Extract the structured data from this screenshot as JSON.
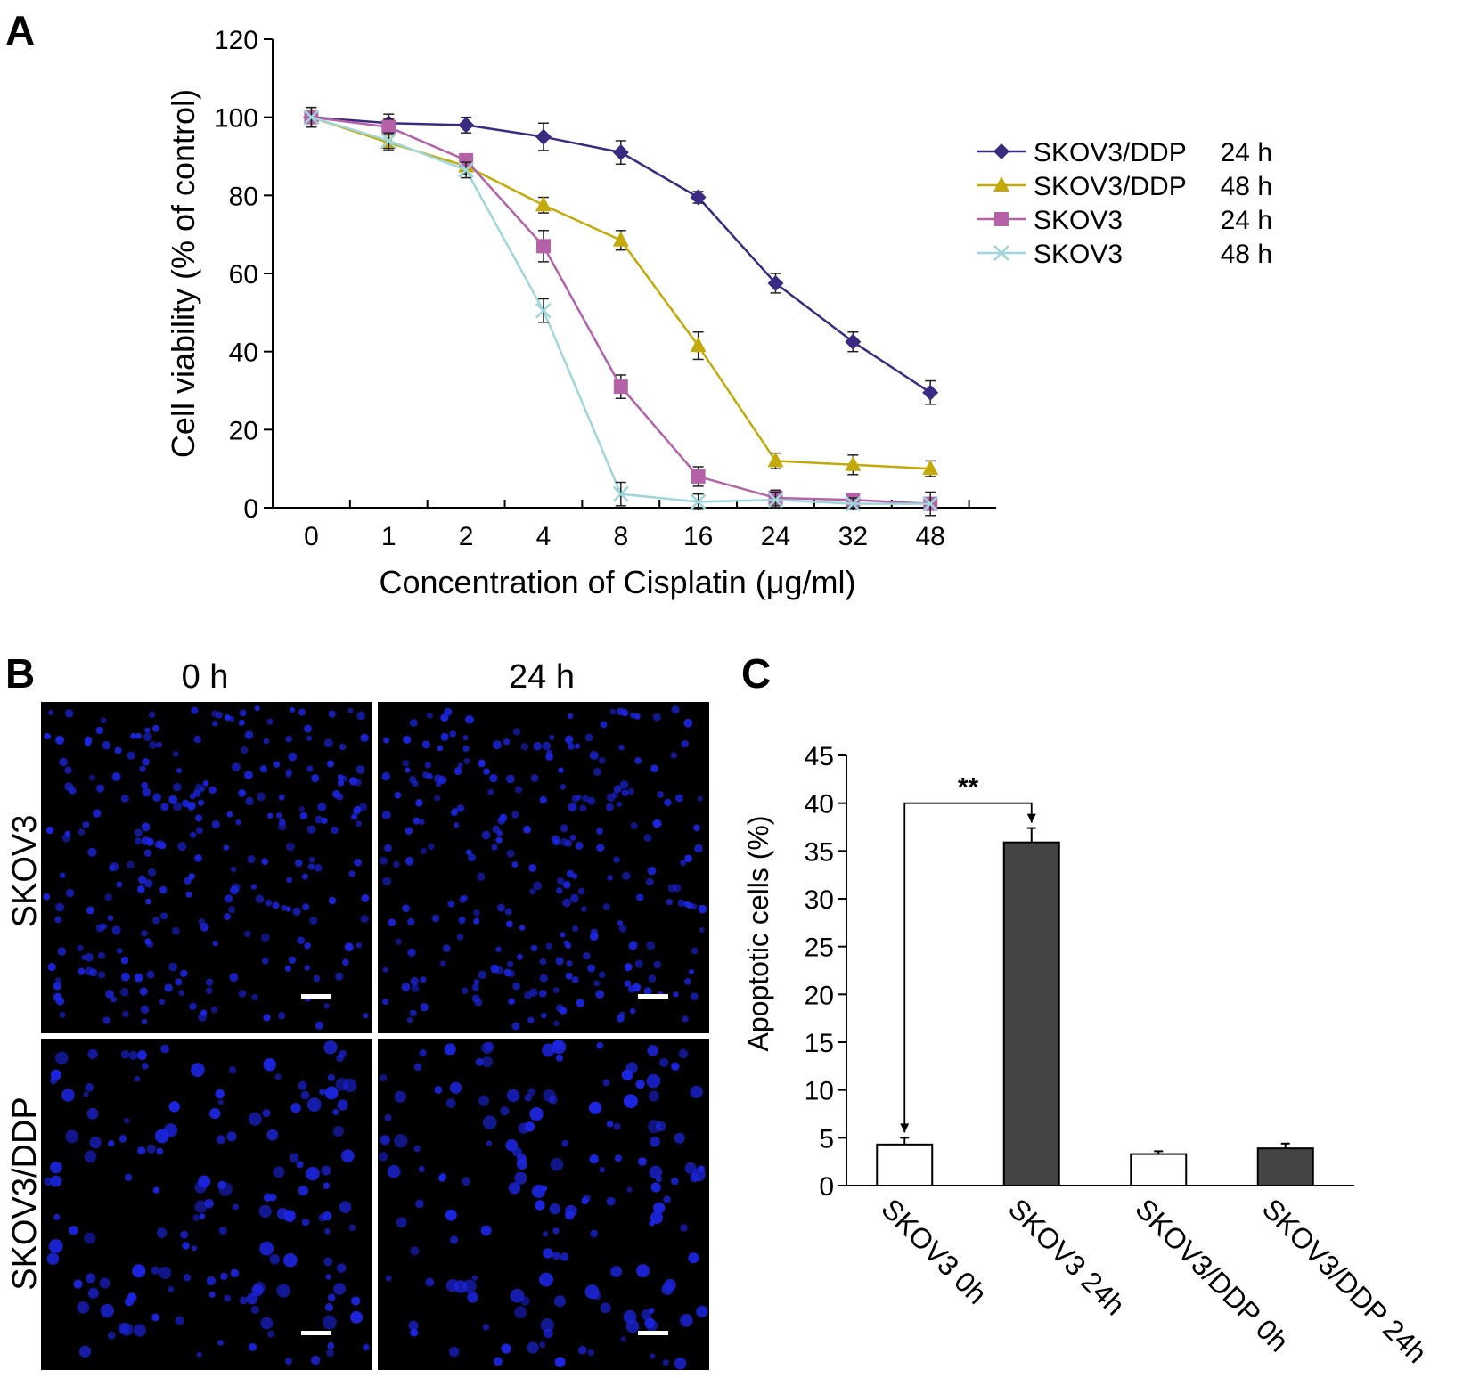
{
  "panels": {
    "a": "A",
    "b": "B",
    "c": "C"
  },
  "chart_data": [
    {
      "type": "line",
      "panel": "A",
      "xlabel": "Concentration of Cisplatin (μg/ml)",
      "ylabel": "Cell viability (% of control)",
      "categories": [
        "0",
        "1",
        "2",
        "4",
        "8",
        "16",
        "24",
        "32",
        "48"
      ],
      "ylim": [
        0,
        120
      ],
      "yticks": [
        0,
        20,
        40,
        60,
        80,
        100,
        120
      ],
      "grid": false,
      "legend_position": "right",
      "series": [
        {
          "name": "SKOV3/DDP",
          "time": "24 h",
          "marker": "diamond",
          "color": "#3b2a82",
          "values": [
            100,
            98.5,
            98,
            95,
            91,
            79.5,
            57.5,
            42.5,
            29.5
          ],
          "errors": [
            2.5,
            2.3,
            2,
            3.5,
            3,
            1.5,
            2.5,
            2.5,
            3
          ]
        },
        {
          "name": "SKOV3/DDP",
          "time": "48 h",
          "marker": "triangle",
          "color": "#c3aa0a",
          "values": [
            100,
            93.5,
            87.5,
            77.5,
            68.5,
            41.5,
            12,
            11,
            10
          ],
          "errors": [
            2.5,
            2,
            2,
            2,
            2.5,
            3.5,
            2,
            2.5,
            2
          ]
        },
        {
          "name": "SKOV3",
          "time": "24 h",
          "marker": "square",
          "color": "#b461a8",
          "values": [
            100,
            97.5,
            89,
            67,
            31,
            8,
            2.5,
            2,
            1
          ],
          "errors": [
            2.5,
            2,
            1.5,
            4,
            3,
            2.5,
            2,
            1.5,
            1.5
          ]
        },
        {
          "name": "SKOV3",
          "time": "48 h",
          "marker": "x",
          "color": "#9fd6da",
          "values": [
            100,
            94,
            86.5,
            50.5,
            3.5,
            1.5,
            2,
            1,
            1
          ],
          "errors": [
            2.5,
            2,
            2,
            3,
            3,
            2,
            2,
            1.5,
            3
          ]
        }
      ]
    },
    {
      "type": "bar",
      "panel": "C",
      "ylabel": "Apoptotic cells (%)",
      "categories": [
        "SKOV3 0h",
        "SKOV3 24h",
        "SKOV3/DDP 0h",
        "SKOV3/DDP 24h"
      ],
      "values": [
        4.3,
        35.9,
        3.3,
        3.9
      ],
      "errors": [
        0.7,
        1.5,
        0.3,
        0.5
      ],
      "colors": [
        "#ffffff",
        "#444444",
        "#ffffff",
        "#444444"
      ],
      "ylim": [
        0,
        45
      ],
      "yticks": [
        0,
        5,
        10,
        15,
        20,
        25,
        30,
        35,
        40,
        45
      ],
      "annotation": {
        "text": "**",
        "between": [
          0,
          1
        ]
      }
    }
  ],
  "micrographs": {
    "column_labels": [
      "0 h",
      "24 h"
    ],
    "row_labels": [
      "SKOV3",
      "SKOV3/DDP"
    ],
    "background": "#000000",
    "cell_color": "#1c25e0"
  }
}
